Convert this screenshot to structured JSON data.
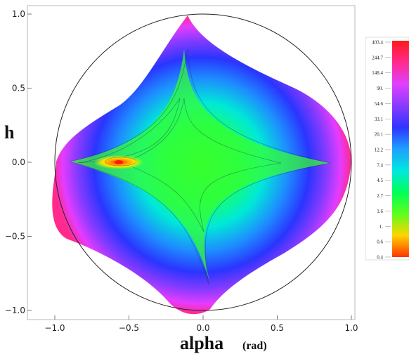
{
  "chart_data": {
    "type": "heatmap",
    "title": "",
    "xlabel": "alpha",
    "xlabel_unit": "(rad)",
    "ylabel": "h",
    "xlim": [
      -1.05,
      1.05
    ],
    "ylim": [
      -1.05,
      1.05
    ],
    "x_ticks": [
      -1.0,
      -0.5,
      0.0,
      0.5,
      1.0
    ],
    "x_tick_labels": [
      "−1.0",
      "−0.5",
      "0.0",
      "0.5",
      "1.0"
    ],
    "y_ticks": [
      1.0,
      0.5,
      0.0,
      -0.5,
      -1.0
    ],
    "y_tick_labels": [
      "1.0",
      "0.5",
      "0.0",
      "−0.5",
      "−1.0"
    ],
    "boundary_circle_radius": 1.0,
    "peak_location": {
      "alpha": -0.57,
      "h": 0.0
    },
    "colorbar": {
      "scale": "log",
      "ticks": [
        "403.4",
        "244.7",
        "148.4",
        "90.",
        "54.6",
        "33.1",
        "20.1",
        "12.2",
        "7.4",
        "4.5",
        "2.7",
        "1.6",
        "1.",
        "0.6",
        "0.4"
      ],
      "colors_top_to_bottom": [
        "#ff1a1a",
        "#ff2a8c",
        "#e040ff",
        "#8a3bff",
        "#2f33ff",
        "#1ea0ff",
        "#00e8e0",
        "#00ff5a",
        "#5cff1c",
        "#ffd400",
        "#ff3300"
      ]
    }
  }
}
